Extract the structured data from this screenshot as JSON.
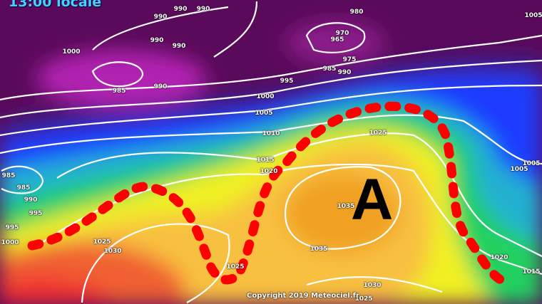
{
  "map": {
    "title": "13:00 locale",
    "copyright": "Copyright 2019 Meteociel.fr",
    "high_pressure_label": "A",
    "isobar_labels": [
      "990",
      "990",
      "980",
      "990",
      "970",
      "965",
      "975",
      "985",
      "990",
      "1000",
      "990",
      "990",
      "985",
      "990",
      "995",
      "1000",
      "1005",
      "1010",
      "1025",
      "1015",
      "1020",
      "1035",
      "1035",
      "1025",
      "1030",
      "985",
      "985",
      "990",
      "995",
      "995",
      "1000",
      "1005",
      "1005",
      "1005",
      "1020",
      "1015",
      "1030",
      "1025",
      "1025"
    ],
    "colors": {
      "low": "#5a0a5a",
      "mid_low": "#1a3cff",
      "mid": "#20d060",
      "mid_high": "#f0f020",
      "high": "#f0a020",
      "very_high": "#f03030",
      "ridge_axis": "#ff0000",
      "isobars": "#ffffff",
      "title": "#3fd4ff"
    }
  }
}
